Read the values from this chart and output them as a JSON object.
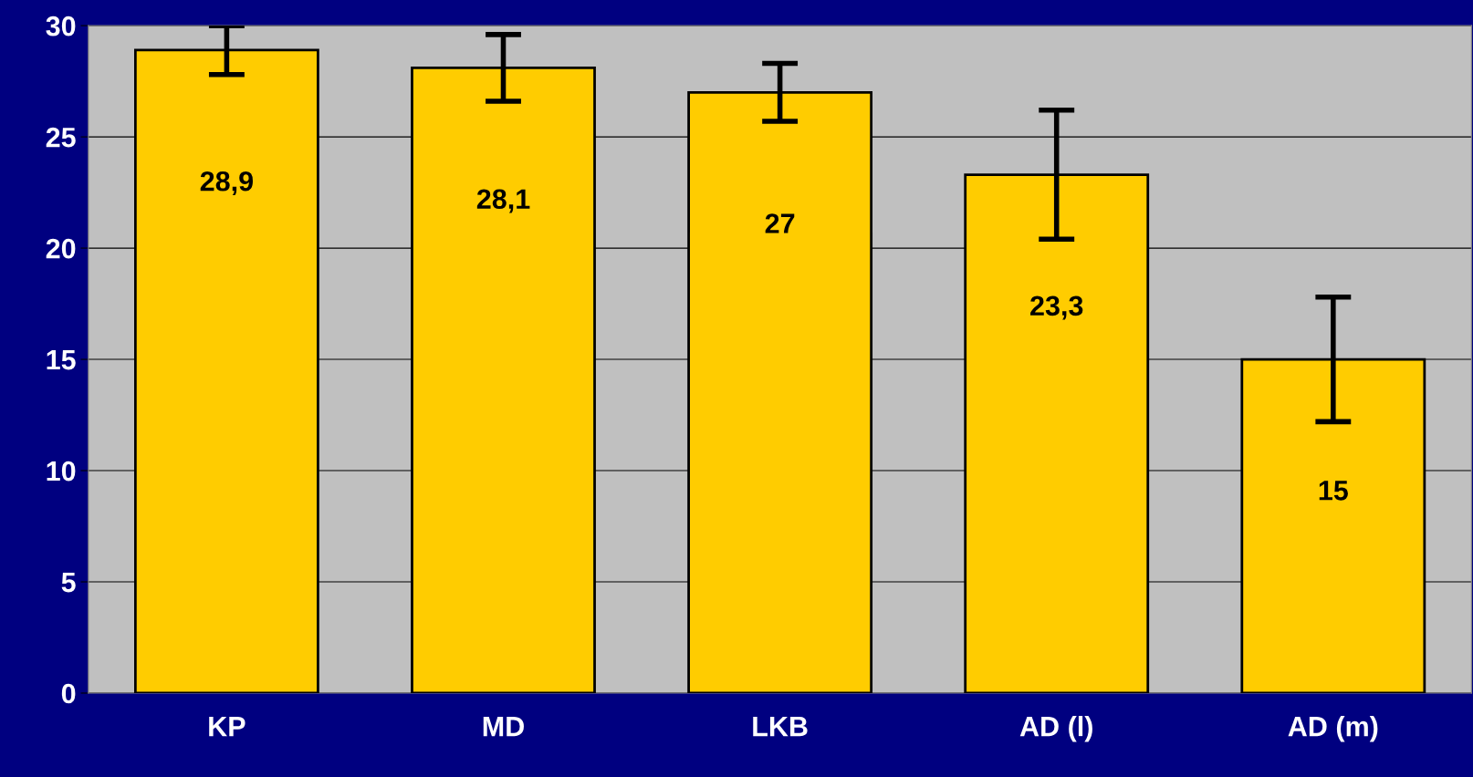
{
  "chart_data": {
    "type": "bar",
    "categories": [
      "KP",
      "MD",
      "LKB",
      "AD (l)",
      "AD (m)"
    ],
    "values": [
      28.9,
      28.1,
      27,
      23.3,
      15
    ],
    "errors": [
      1.1,
      1.5,
      1.3,
      2.9,
      2.8
    ],
    "value_labels": [
      "28,9",
      "28,1",
      "27",
      "23,3",
      "15"
    ],
    "color": "#ffcc00",
    "ylim": [
      0,
      30
    ],
    "yticks": [
      0,
      5,
      10,
      15,
      20,
      25,
      30
    ],
    "grid": "y",
    "legend": false
  }
}
